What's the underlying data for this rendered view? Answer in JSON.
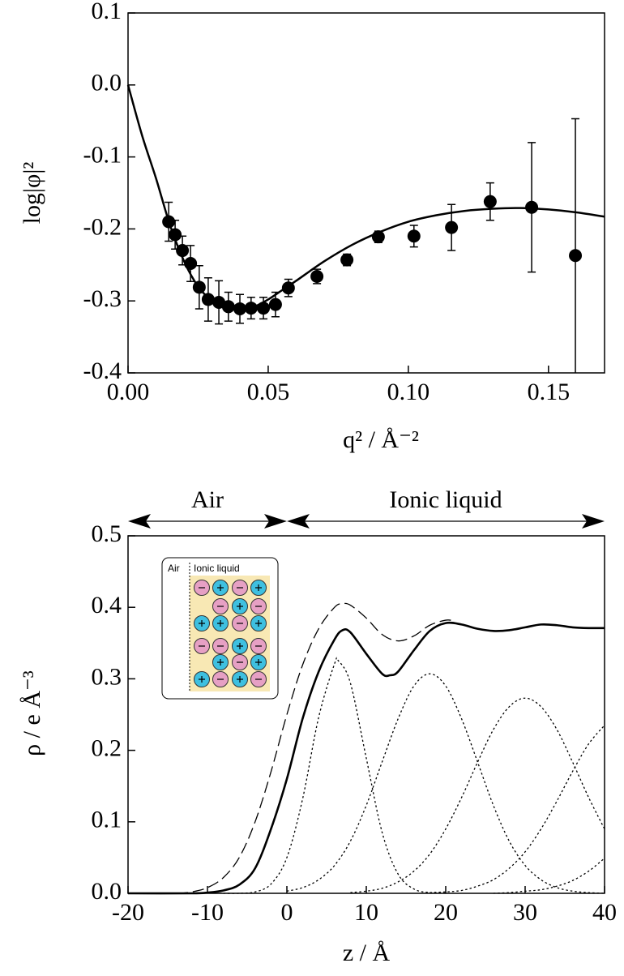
{
  "chart_data": [
    {
      "type": "scatter",
      "ylabel": "log|φ|²",
      "xlabel": "q² / Å⁻²",
      "xlim": [
        0,
        0.17
      ],
      "ylim": [
        -0.4,
        0.1
      ],
      "xticks": [
        {
          "value": 0,
          "label": "0.00"
        },
        0.05,
        {
          "value": 0.1,
          "label": "0.10"
        },
        0.15
      ],
      "yticks": [
        -0.4,
        -0.3,
        -0.2,
        -0.1,
        {
          "value": 0,
          "label": "0.0"
        },
        0.1
      ],
      "points": {
        "color": "#000000",
        "x": [
          0.0145,
          0.0168,
          0.0194,
          0.0223,
          0.0254,
          0.0286,
          0.0324,
          0.0358,
          0.0399,
          0.0439,
          0.0483,
          0.0526,
          0.0572,
          0.0674,
          0.0781,
          0.0893,
          0.102,
          0.1154,
          0.1292,
          0.144,
          0.1596
        ],
        "values": [
          -0.19,
          -0.208,
          -0.23,
          -0.248,
          -0.281,
          -0.298,
          -0.302,
          -0.308,
          -0.311,
          -0.31,
          -0.31,
          -0.305,
          -0.282,
          -0.266,
          -0.243,
          -0.211,
          -0.21,
          -0.198,
          -0.162,
          -0.17,
          -0.237
        ],
        "errors": [
          0.027,
          0.02,
          0.02,
          0.025,
          0.03,
          0.03,
          0.03,
          0.02,
          0.02,
          0.015,
          0.015,
          0.017,
          0.012,
          0.01,
          0.008,
          0.008,
          0.015,
          0.032,
          0.026,
          0.09,
          0.19
        ]
      },
      "fit": {
        "color": "#000000",
        "x": [
          0,
          0.005,
          0.01,
          0.015,
          0.02,
          0.025,
          0.03,
          0.035,
          0.04,
          0.045,
          0.05,
          0.055,
          0.06,
          0.07,
          0.08,
          0.09,
          0.1,
          0.11,
          0.12,
          0.13,
          0.14,
          0.15,
          0.16,
          0.17
        ],
        "values": [
          0,
          -0.07,
          -0.13,
          -0.195,
          -0.245,
          -0.28,
          -0.3,
          -0.31,
          -0.312,
          -0.308,
          -0.298,
          -0.285,
          -0.272,
          -0.245,
          -0.222,
          -0.204,
          -0.19,
          -0.181,
          -0.175,
          -0.172,
          -0.171,
          -0.173,
          -0.177,
          -0.183
        ]
      }
    },
    {
      "type": "line",
      "xlabel": "z / Å",
      "ylabel": "ρ / e Å⁻³",
      "xlim": [
        -20,
        40
      ],
      "ylim": [
        0,
        0.5
      ],
      "xticks": [
        -20,
        -10,
        0,
        10,
        20,
        30,
        40
      ],
      "yticks": [
        {
          "value": 0,
          "label": "0.0"
        },
        0.1,
        0.2,
        0.3,
        0.4,
        0.5
      ],
      "regions": [
        {
          "label": "Air",
          "from": -20,
          "to": 0
        },
        {
          "label": "Ionic liquid",
          "from": 0,
          "to": 40
        }
      ],
      "inset": {
        "left_label": "Air",
        "right_label": "Ionic liquid"
      },
      "series": [
        {
          "style": "solid",
          "color": "#000000",
          "x": [
            -20,
            -12,
            -10,
            -8,
            -6,
            -4,
            -2,
            0,
            2,
            4,
            6,
            7,
            8,
            10,
            12,
            13,
            14,
            16,
            18,
            20,
            22,
            24,
            26,
            28,
            30,
            32,
            34,
            36,
            38,
            40
          ],
          "values": [
            0,
            0,
            0.001,
            0.004,
            0.012,
            0.035,
            0.09,
            0.16,
            0.245,
            0.31,
            0.355,
            0.368,
            0.365,
            0.335,
            0.307,
            0.305,
            0.31,
            0.34,
            0.367,
            0.378,
            0.376,
            0.37,
            0.367,
            0.368,
            0.372,
            0.376,
            0.375,
            0.372,
            0.371,
            0.371
          ]
        },
        {
          "style": "dashed",
          "color": "#000000",
          "x": [
            -20,
            -14,
            -12,
            -10,
            -8,
            -6,
            -4,
            -2,
            0,
            2,
            4,
            6,
            7,
            8,
            10,
            12,
            14,
            16,
            18,
            20,
            21
          ],
          "values": [
            0,
            0,
            0.002,
            0.008,
            0.022,
            0.05,
            0.1,
            0.17,
            0.25,
            0.32,
            0.37,
            0.4,
            0.405,
            0.403,
            0.385,
            0.362,
            0.353,
            0.36,
            0.375,
            0.382,
            0.381
          ]
        },
        {
          "style": "dotted",
          "color": "#000000",
          "x": [
            -8,
            -6,
            -4,
            -2,
            0,
            2,
            4,
            6,
            6.5,
            8,
            10,
            12,
            14,
            16,
            18,
            20
          ],
          "values": [
            0,
            0,
            0.002,
            0.013,
            0.05,
            0.133,
            0.246,
            0.321,
            0.325,
            0.294,
            0.189,
            0.085,
            0.027,
            0.006,
            0.001,
            0
          ]
        },
        {
          "style": "dotted",
          "color": "#000000",
          "x": [
            0,
            2,
            4,
            6,
            8,
            10,
            12,
            14,
            16,
            18,
            20,
            22,
            24,
            26,
            28,
            30,
            32,
            34,
            36,
            38,
            40
          ],
          "values": [
            0.003,
            0.008,
            0.019,
            0.039,
            0.073,
            0.123,
            0.184,
            0.244,
            0.29,
            0.307,
            0.29,
            0.244,
            0.184,
            0.123,
            0.073,
            0.039,
            0.019,
            0.008,
            0.003,
            0.001,
            0
          ]
        },
        {
          "style": "dotted",
          "color": "#000000",
          "x": [
            8,
            10,
            12,
            14,
            16,
            18,
            20,
            22,
            24,
            26,
            28,
            30,
            32,
            34,
            36,
            38,
            40
          ],
          "values": [
            0.001,
            0.003,
            0.007,
            0.016,
            0.031,
            0.055,
            0.09,
            0.134,
            0.183,
            0.229,
            0.261,
            0.273,
            0.261,
            0.229,
            0.183,
            0.134,
            0.09
          ]
        },
        {
          "style": "dotted",
          "color": "#000000",
          "x": [
            18,
            20,
            22,
            24,
            26,
            28,
            30,
            32,
            34,
            36,
            38,
            40
          ],
          "values": [
            0.001,
            0.002,
            0.004,
            0.01,
            0.019,
            0.035,
            0.058,
            0.09,
            0.129,
            0.171,
            0.209,
            0.235
          ]
        },
        {
          "style": "dotted",
          "color": "#000000",
          "x": [
            26,
            28,
            30,
            32,
            34,
            36,
            38,
            40
          ],
          "values": [
            0,
            0.001,
            0.003,
            0.005,
            0.01,
            0.018,
            0.031,
            0.049
          ]
        }
      ]
    }
  ]
}
